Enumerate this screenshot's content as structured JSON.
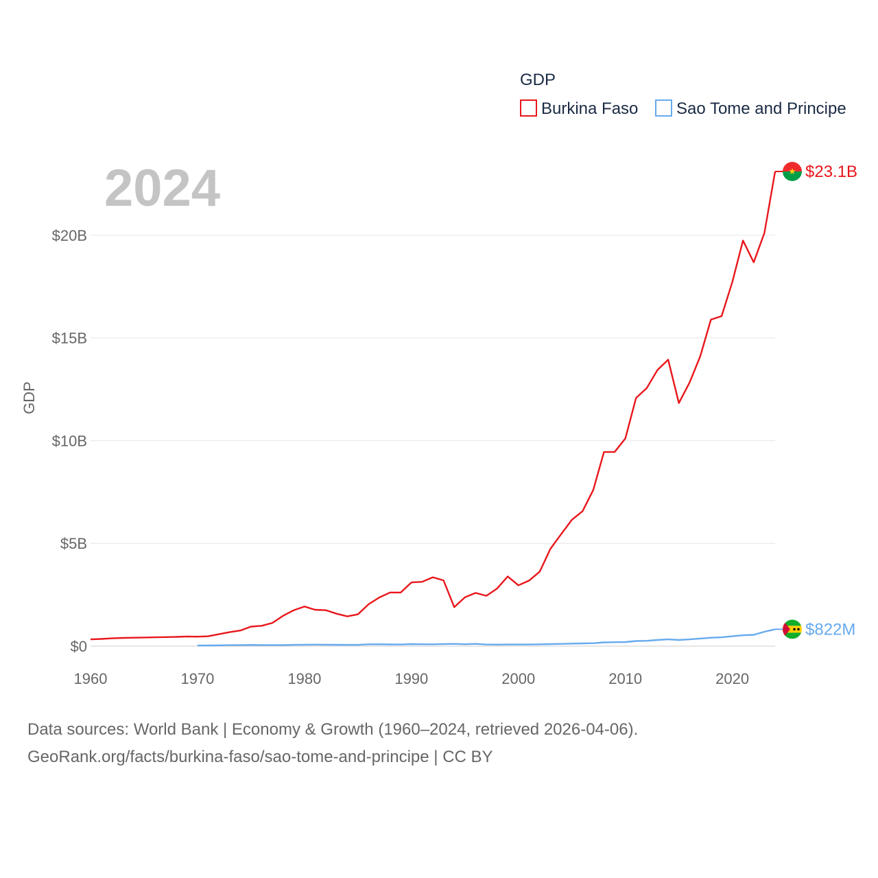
{
  "chart_data": {
    "type": "line",
    "title": "GDP",
    "ylabel": "GDP",
    "xlabel": "",
    "year_label": "2024",
    "xlim": [
      1960,
      2024
    ],
    "ylim": [
      0,
      23100000000
    ],
    "x_ticks": [
      1960,
      1970,
      1980,
      1990,
      2000,
      2010,
      2020
    ],
    "x_tick_labels": [
      "1960",
      "1970",
      "1980",
      "1990",
      "2000",
      "2010",
      "2020"
    ],
    "y_ticks": [
      0,
      5000000000,
      10000000000,
      15000000000,
      20000000000
    ],
    "y_tick_labels": [
      "$0",
      "$5B",
      "$10B",
      "$15B",
      "$20B"
    ],
    "grid": true,
    "legend_position": "top-right",
    "series": [
      {
        "name": "Burkina Faso",
        "color": "#e8161b",
        "end_label": "$23.1B",
        "flag_icon": "burkina-faso-flag-icon",
        "x": [
          1960,
          1961,
          1962,
          1963,
          1964,
          1965,
          1966,
          1967,
          1968,
          1969,
          1970,
          1971,
          1972,
          1973,
          1974,
          1975,
          1976,
          1977,
          1978,
          1979,
          1980,
          1981,
          1982,
          1983,
          1984,
          1985,
          1986,
          1987,
          1988,
          1989,
          1990,
          1991,
          1992,
          1993,
          1994,
          1995,
          1996,
          1997,
          1998,
          1999,
          2000,
          2001,
          2002,
          2003,
          2004,
          2005,
          2006,
          2007,
          2008,
          2009,
          2010,
          2011,
          2012,
          2013,
          2014,
          2015,
          2016,
          2017,
          2018,
          2019,
          2020,
          2021,
          2022,
          2023,
          2024
        ],
        "values": [
          330000000,
          350000000,
          380000000,
          400000000,
          410000000,
          420000000,
          430000000,
          440000000,
          450000000,
          470000000,
          460000000,
          480000000,
          580000000,
          680000000,
          760000000,
          950000000,
          990000000,
          1130000000,
          1480000000,
          1750000000,
          1930000000,
          1770000000,
          1750000000,
          1580000000,
          1450000000,
          1550000000,
          2040000000,
          2370000000,
          2610000000,
          2610000000,
          3100000000,
          3130000000,
          3350000000,
          3200000000,
          1900000000,
          2380000000,
          2590000000,
          2450000000,
          2800000000,
          3390000000,
          2960000000,
          3190000000,
          3630000000,
          4740000000,
          5450000000,
          6150000000,
          6570000000,
          7600000000,
          9450000000,
          9450000000,
          10110000000,
          12080000000,
          12560000000,
          13440000000,
          13940000000,
          11830000000,
          12830000000,
          14100000000,
          15890000000,
          16060000000,
          17720000000,
          19740000000,
          18680000000,
          20110000000,
          23100000000
        ]
      },
      {
        "name": "Sao Tome and Principe",
        "color": "#66aaee",
        "end_label": "$822M",
        "flag_icon": "sao-tome-and-principe-flag-icon",
        "x": [
          1970,
          1971,
          1972,
          1973,
          1974,
          1975,
          1976,
          1977,
          1978,
          1979,
          1980,
          1981,
          1982,
          1983,
          1984,
          1985,
          1986,
          1987,
          1988,
          1989,
          1990,
          1991,
          1992,
          1993,
          1994,
          1995,
          1996,
          1997,
          1998,
          1999,
          2000,
          2001,
          2002,
          2003,
          2004,
          2005,
          2006,
          2007,
          2008,
          2009,
          2010,
          2011,
          2012,
          2013,
          2014,
          2015,
          2016,
          2017,
          2018,
          2019,
          2020,
          2021,
          2022,
          2023,
          2024
        ],
        "values": [
          30000000,
          32000000,
          40000000,
          48000000,
          55000000,
          60000000,
          55000000,
          52000000,
          55000000,
          65000000,
          70000000,
          72000000,
          70000000,
          68000000,
          62000000,
          65000000,
          90000000,
          95000000,
          85000000,
          80000000,
          100000000,
          95000000,
          90000000,
          105000000,
          110000000,
          95000000,
          110000000,
          80000000,
          75000000,
          80000000,
          80000000,
          80000000,
          90000000,
          100000000,
          110000000,
          125000000,
          135000000,
          145000000,
          185000000,
          195000000,
          200000000,
          250000000,
          260000000,
          300000000,
          330000000,
          300000000,
          330000000,
          370000000,
          410000000,
          430000000,
          480000000,
          530000000,
          550000000,
          700000000,
          822000000
        ]
      }
    ]
  },
  "footer": {
    "line1": "Data sources: World Bank | Economy & Growth (1960–2024, retrieved 2026-04-06).",
    "line2": "GeoRank.org/facts/burkina-faso/sao-tome-and-principe | CC BY"
  }
}
